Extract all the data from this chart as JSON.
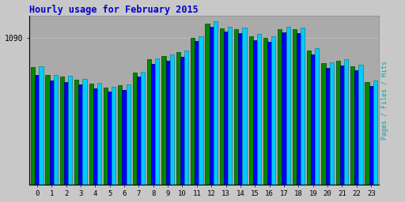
{
  "title": "Hourly usage for February 2015",
  "hours": [
    0,
    1,
    2,
    3,
    4,
    5,
    6,
    7,
    8,
    9,
    10,
    11,
    12,
    13,
    14,
    15,
    16,
    17,
    18,
    19,
    20,
    21,
    22,
    23
  ],
  "hits": [
    580,
    540,
    535,
    520,
    498,
    480,
    492,
    555,
    620,
    638,
    658,
    730,
    800,
    775,
    772,
    738,
    728,
    775,
    772,
    670,
    600,
    615,
    590,
    510
  ],
  "files": [
    540,
    510,
    504,
    492,
    472,
    456,
    466,
    530,
    592,
    608,
    628,
    705,
    775,
    750,
    745,
    710,
    700,
    748,
    743,
    638,
    572,
    586,
    560,
    482
  ],
  "pages": [
    575,
    538,
    530,
    516,
    494,
    476,
    488,
    548,
    614,
    630,
    650,
    720,
    790,
    765,
    764,
    730,
    720,
    764,
    762,
    660,
    595,
    608,
    582,
    505
  ],
  "hits_color": "#00ccff",
  "files_color": "#0000ff",
  "pages_color": "#008800",
  "hits_edge": "#008899",
  "files_edge": "#000077",
  "pages_edge": "#004400",
  "bg_color": "#c8c8c8",
  "plot_bg": "#aaaaaa",
  "title_color": "#0000cc",
  "grid_color": "#bbbbbb",
  "ytick_val": 720,
  "ytick_label": "1090",
  "ymax": 830,
  "xlim_left": -0.55,
  "xlim_right": 23.55,
  "bar_width": 0.28,
  "figsize": [
    5.12,
    2.56
  ],
  "dpi": 100,
  "pages_label_color": "#006600",
  "files_label_color": "#0000cc",
  "hits_label_color": "#00aaaa"
}
